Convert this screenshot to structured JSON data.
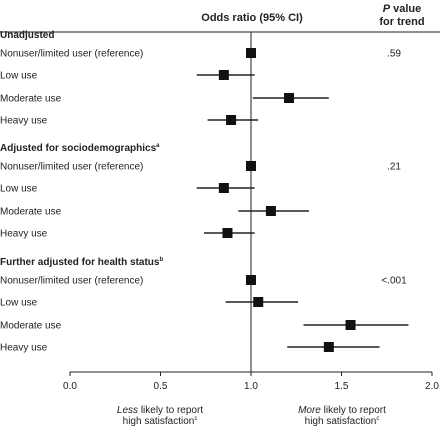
{
  "chart_data": {
    "type": "forest",
    "header": {
      "or_label": "Odds ratio (95% CI)",
      "p_label_italic": "P",
      "p_label_rest": " value",
      "p_label_line2": "for trend"
    },
    "x_ticks": [
      "0.0",
      "0.5",
      "1.0",
      "1.5",
      "2.0"
    ],
    "xlim": [
      0,
      2
    ],
    "reference_line": 1.0,
    "groups": [
      {
        "title": "Unadjusted",
        "title_sup": "",
        "p_trend": ".59",
        "rows": [
          {
            "label": "Nonuser/limited user (reference)",
            "or": 1.0,
            "lo": 1.0,
            "hi": 1.0
          },
          {
            "label": "Low use",
            "or": 0.85,
            "lo": 0.7,
            "hi": 1.02
          },
          {
            "label": "Moderate use",
            "or": 1.21,
            "lo": 1.01,
            "hi": 1.43
          },
          {
            "label": "Heavy use",
            "or": 0.89,
            "lo": 0.76,
            "hi": 1.04
          }
        ]
      },
      {
        "title": "Adjusted for sociodemographics",
        "title_sup": "a",
        "p_trend": ".21",
        "rows": [
          {
            "label": "Nonuser/limited user (reference)",
            "or": 1.0,
            "lo": 1.0,
            "hi": 1.0
          },
          {
            "label": "Low use",
            "or": 0.85,
            "lo": 0.7,
            "hi": 1.02
          },
          {
            "label": "Moderate use",
            "or": 1.11,
            "lo": 0.93,
            "hi": 1.32
          },
          {
            "label": "Heavy use",
            "or": 0.87,
            "lo": 0.74,
            "hi": 1.02
          }
        ]
      },
      {
        "title": "Further adjusted for health status",
        "title_sup": "b",
        "p_trend": "<.001",
        "rows": [
          {
            "label": "Nonuser/limited user (reference)",
            "or": 1.0,
            "lo": 1.0,
            "hi": 1.0
          },
          {
            "label": "Low use",
            "or": 1.04,
            "lo": 0.86,
            "hi": 1.26
          },
          {
            "label": "Moderate use",
            "or": 1.55,
            "lo": 1.29,
            "hi": 1.87
          },
          {
            "label": "Heavy use",
            "or": 1.43,
            "lo": 1.2,
            "hi": 1.71
          }
        ]
      }
    ],
    "footer": {
      "left_italic": "Less",
      "left_rest": " likely to report",
      "left_line2": "high satisfaction",
      "left_sup": "c",
      "right_italic": "More",
      "right_rest": " likely to report",
      "right_line2": "high satisfaction",
      "right_sup": "c"
    }
  }
}
